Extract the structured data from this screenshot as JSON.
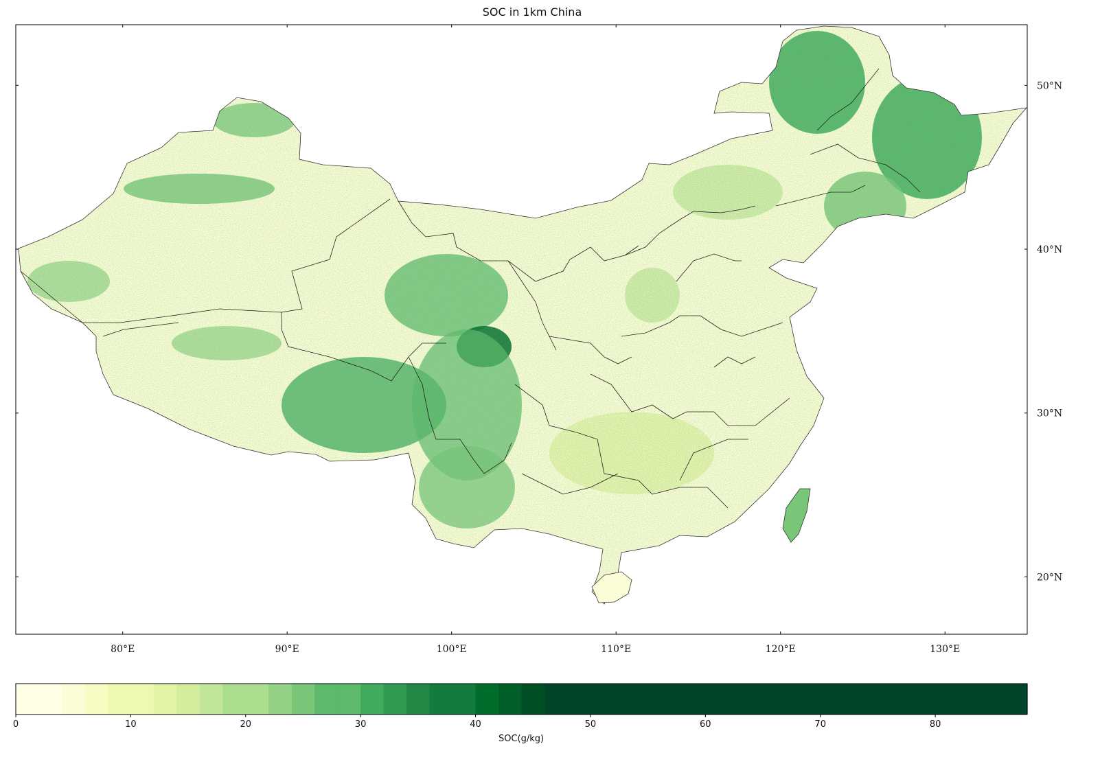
{
  "title": "SOC in 1km China",
  "map": {
    "projection": "PlateCarree",
    "lon_range": [
      73.5,
      135.0
    ],
    "lat_range": [
      16.5,
      53.7
    ],
    "lat_ticks": [
      {
        "value": 20,
        "label": "20°N"
      },
      {
        "value": 30,
        "label": "30°N"
      },
      {
        "value": 40,
        "label": "40°N"
      },
      {
        "value": 50,
        "label": "50°N"
      }
    ],
    "lon_ticks": [
      {
        "value": 80,
        "label": "80°E"
      },
      {
        "value": 90,
        "label": "90°E"
      },
      {
        "value": 100,
        "label": "100°E"
      },
      {
        "value": 110,
        "label": "110°E"
      },
      {
        "value": 120,
        "label": "120°E"
      },
      {
        "value": 130,
        "label": "130°E"
      }
    ],
    "lat_label_side": "right",
    "lon_label_side": "bottom",
    "grid": false,
    "variable": "SOC",
    "high_soc_regions": [
      "northeast",
      "eastern Qinghai-Tibet Plateau",
      "southwest"
    ],
    "low_soc_regions": [
      "northwest deserts",
      "north China plain"
    ]
  },
  "colorbar": {
    "label": "SOC(g/kg)",
    "ticks": [
      0,
      10,
      20,
      30,
      40,
      50,
      60,
      70,
      80
    ],
    "range": [
      0,
      88
    ],
    "step": 2,
    "cmap": "YlGn",
    "colors": [
      "#ffffe5",
      "#fbfdd6",
      "#f7fcc2",
      "#eef8b0",
      "#e2f3a6",
      "#d2ed9c",
      "#c2e699",
      "#aadd8e",
      "#93d284",
      "#79c679",
      "#5db96b",
      "#41ab5d",
      "#329a51",
      "#238845",
      "#137b3d",
      "#006d2c",
      "#005e29",
      "#004f25",
      "#004529"
    ]
  }
}
